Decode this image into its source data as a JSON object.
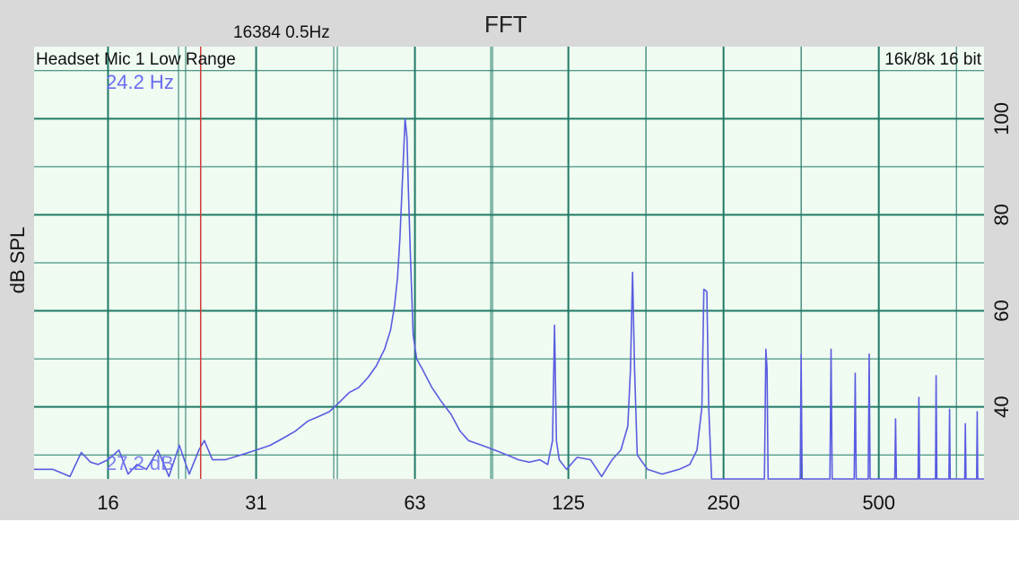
{
  "window": {
    "title": "FFT",
    "meta": "16384  0.5Hz",
    "channel_label": "Headset Mic 1 Low Range",
    "format_label": "16k/8k 16 bit",
    "cursor_freq_readout": "24.2 Hz",
    "cursor_level_readout": "27.2 dB"
  },
  "colors": {
    "background": "#d9d9d9",
    "plot_bg": "#f0fbf2",
    "grid": "#1f7a66",
    "trace": "#5a5ce0",
    "cursor": "#d23a3a"
  },
  "chart_data": {
    "type": "line",
    "title": "FFT",
    "xlabel": "",
    "ylabel": "dB SPL",
    "x_scale": "log",
    "xlim": [
      11.5,
      800
    ],
    "ylim": [
      25,
      115
    ],
    "x_ticks": [
      16,
      31,
      63,
      125,
      250,
      500
    ],
    "x_tick_labels": [
      "16",
      "31",
      "63",
      "125",
      "250",
      "500"
    ],
    "y_ticks": [
      40,
      60,
      80,
      100
    ],
    "y_tick_labels": [
      "40",
      "60",
      "80",
      "100"
    ],
    "grid": true,
    "cursor": {
      "x": 24.2,
      "y": 27.2
    },
    "series": [
      {
        "x": [
          11.5,
          12.5,
          13.5,
          14.2,
          14.8,
          15.3,
          16.0,
          16.8,
          17.5,
          18.2,
          19.0,
          20.0,
          21.0,
          22.0,
          23.0,
          24.0,
          24.6,
          25.5,
          27.0,
          29.0,
          31.0,
          33.0,
          35.0,
          37.0,
          39.0,
          41.0,
          43.0,
          45.0,
          47.0,
          49.0,
          51.0,
          53.0,
          55.0,
          56.5,
          57.5,
          58.3,
          58.9,
          59.4,
          59.9,
          60.3,
          60.8,
          61.2,
          61.8,
          62.5,
          63.5,
          65.0,
          68.0,
          71.0,
          74.0,
          77.0,
          80.0,
          85.0,
          90.0,
          95.0,
          100.0,
          105.0,
          110.0,
          114.0,
          116.5,
          117.5,
          118.5,
          120.0,
          124.0,
          130.0,
          138.0,
          145.0,
          152.0,
          158.0,
          163.0,
          165.0,
          166.5,
          168.0,
          170.0,
          178.0,
          190.0,
          205.0,
          215.0,
          222.0,
          227.0,
          229.0,
          232.0,
          234.0,
          237.0,
          240.0,
          255.0,
          275.0,
          300.0,
          302.0,
          303.5,
          305.0,
          340.0,
          352.0,
          353.5,
          355.0,
          395.0,
          402.0,
          404.0,
          406.0,
          440.0,
          448.0,
          450.0,
          452.0,
          470.0,
          477.0,
          479.0,
          481.0,
          530.0,
          537.0,
          539.0,
          541.0,
          590.0,
          596.0,
          598.0,
          600.0,
          640.0,
          644.0,
          646.0,
          648.0,
          680.0,
          684.0,
          686.0,
          688.0,
          730.0,
          734.0,
          736.0,
          738.0,
          770.0,
          774.0,
          776.0,
          778.0,
          800.0
        ],
        "y": [
          27.0,
          27.0,
          25.5,
          30.5,
          28.5,
          28.0,
          29.0,
          31.0,
          26.0,
          28.0,
          27.0,
          31.0,
          25.5,
          32.0,
          26.0,
          31.0,
          33.0,
          29.0,
          29.0,
          30.0,
          31.0,
          32.0,
          33.5,
          35.0,
          37.0,
          38.0,
          39.0,
          41.0,
          43.0,
          44.0,
          46.0,
          48.5,
          52.0,
          56.0,
          61.0,
          67.0,
          75.0,
          84.0,
          93.0,
          100.0,
          96.0,
          85.0,
          70.0,
          55.0,
          50.0,
          48.0,
          44.0,
          41.0,
          38.5,
          35.0,
          33.0,
          32.0,
          31.0,
          30.0,
          29.0,
          28.5,
          29.0,
          28.0,
          33.0,
          57.0,
          33.0,
          29.0,
          27.0,
          29.5,
          29.0,
          25.5,
          29.0,
          31.0,
          36.0,
          48.0,
          68.0,
          48.0,
          30.0,
          27.0,
          26.0,
          27.0,
          28.0,
          31.0,
          40.0,
          64.5,
          64.0,
          40.0,
          25.0,
          25.0,
          25.0,
          25.0,
          25.0,
          52.0,
          48.0,
          25.0,
          25.0,
          25.0,
          51.0,
          25.0,
          25.0,
          25.0,
          52.0,
          25.0,
          25.0,
          25.0,
          47.0,
          25.0,
          25.0,
          25.0,
          51.0,
          25.0,
          25.0,
          25.0,
          37.5,
          25.0,
          25.0,
          25.0,
          42.0,
          25.0,
          25.0,
          25.0,
          46.5,
          25.0,
          25.0,
          25.0,
          39.5,
          25.0,
          25.0,
          25.0,
          36.5,
          25.0,
          25.0,
          25.0,
          39.0,
          25.0,
          25.0
        ]
      }
    ]
  }
}
